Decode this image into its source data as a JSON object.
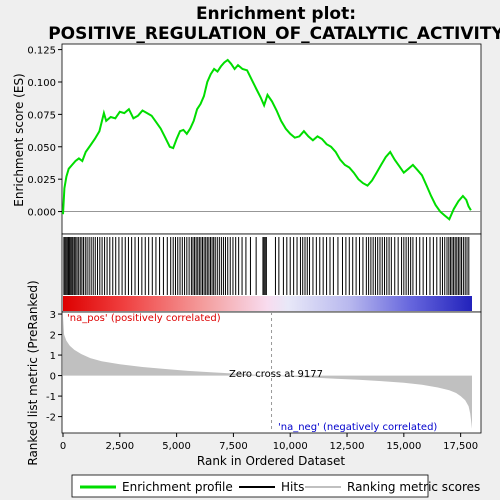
{
  "chart_data": {
    "type": "line",
    "title": "Enrichment plot: POSITIVE_REGULATION_OF_CATALYTIC_ACTIVITY",
    "title_lines": [
      "Enrichment plot:",
      "POSITIVE_REGULATION_OF_CATALYTIC_ACTIVITY"
    ],
    "xlabel": "Rank in Ordered Dataset",
    "xlim": [
      0,
      18000
    ],
    "x_ticks": [
      0,
      2500,
      5000,
      7500,
      10000,
      12500,
      15000,
      17500
    ],
    "x_tick_labels": [
      "0",
      "2,500",
      "5,000",
      "7,500",
      "10,000",
      "12,500",
      "15,000",
      "17,500"
    ],
    "es_panel": {
      "ylabel": "Enrichment score (ES)",
      "ylim": [
        -0.015,
        0.127
      ],
      "y_ticks": [
        0.0,
        0.025,
        0.05,
        0.075,
        0.1,
        0.125
      ],
      "y_tick_labels": [
        "0.000",
        "0.025",
        "0.050",
        "0.075",
        "0.100",
        "0.125"
      ],
      "series": [
        {
          "name": "Enrichment profile",
          "color": "#00dd00",
          "x": [
            0,
            60,
            150,
            250,
            400,
            550,
            700,
            850,
            1000,
            1200,
            1400,
            1600,
            1800,
            1900,
            2100,
            2300,
            2500,
            2700,
            2900,
            3100,
            3300,
            3500,
            3700,
            3900,
            4100,
            4300,
            4500,
            4700,
            4850,
            5000,
            5150,
            5300,
            5450,
            5600,
            5750,
            5900,
            6050,
            6200,
            6350,
            6500,
            6650,
            6800,
            6950,
            7100,
            7250,
            7400,
            7550,
            7700,
            7900,
            8100,
            8300,
            8500,
            8700,
            8850,
            9000,
            9200,
            9400,
            9600,
            9800,
            10000,
            10200,
            10400,
            10600,
            10800,
            11000,
            11200,
            11400,
            11600,
            11800,
            12000,
            12200,
            12400,
            12600,
            12800,
            13000,
            13200,
            13400,
            13600,
            13800,
            14000,
            14200,
            14400,
            14600,
            14800,
            15000,
            15200,
            15400,
            15600,
            15800,
            16000,
            16200,
            16400,
            16600,
            16800,
            17000,
            17200,
            17400,
            17600,
            17750,
            17850,
            17950
          ],
          "y": [
            -0.002,
            0.018,
            0.027,
            0.033,
            0.036,
            0.039,
            0.041,
            0.039,
            0.046,
            0.051,
            0.056,
            0.062,
            0.076,
            0.07,
            0.073,
            0.072,
            0.077,
            0.076,
            0.079,
            0.072,
            0.074,
            0.078,
            0.076,
            0.074,
            0.069,
            0.064,
            0.057,
            0.05,
            0.049,
            0.056,
            0.062,
            0.063,
            0.06,
            0.064,
            0.07,
            0.079,
            0.083,
            0.089,
            0.1,
            0.106,
            0.11,
            0.108,
            0.112,
            0.115,
            0.117,
            0.114,
            0.11,
            0.113,
            0.11,
            0.109,
            0.102,
            0.095,
            0.088,
            0.082,
            0.09,
            0.085,
            0.078,
            0.07,
            0.064,
            0.06,
            0.057,
            0.058,
            0.062,
            0.058,
            0.055,
            0.058,
            0.056,
            0.052,
            0.05,
            0.046,
            0.04,
            0.036,
            0.034,
            0.03,
            0.025,
            0.022,
            0.02,
            0.024,
            0.03,
            0.036,
            0.042,
            0.046,
            0.04,
            0.035,
            0.03,
            0.033,
            0.036,
            0.032,
            0.028,
            0.02,
            0.012,
            0.005,
            0.0,
            -0.003,
            -0.006,
            0.002,
            0.008,
            0.012,
            0.009,
            0.004,
            0.001
          ]
        }
      ]
    },
    "hits_panel": {
      "name": "Hits",
      "line_color": "#000000",
      "hit_ranks": [
        40,
        90,
        140,
        190,
        240,
        290,
        340,
        390,
        440,
        500,
        560,
        620,
        690,
        760,
        830,
        900,
        980,
        1060,
        1150,
        1240,
        1330,
        1420,
        1520,
        1620,
        1720,
        1830,
        1940,
        2060,
        2190,
        2320,
        2460,
        2600,
        2740,
        2880,
        3020,
        3170,
        3320,
        3470,
        3620,
        3770,
        3930,
        4090,
        4250,
        4420,
        4590,
        4740,
        4850,
        4950,
        5050,
        5150,
        5250,
        5350,
        5450,
        5550,
        5650,
        5720,
        5790,
        5860,
        5930,
        6000,
        6070,
        6140,
        6210,
        6280,
        6350,
        6420,
        6490,
        6560,
        6630,
        6700,
        6790,
        6880,
        6970,
        7060,
        7150,
        7250,
        7360,
        7480,
        7600,
        7730,
        7880,
        8050,
        8250,
        8500,
        8800,
        8850,
        8900,
        8950,
        9350,
        9500,
        9700,
        9850,
        10000,
        10150,
        10300,
        10450,
        10550,
        10650,
        10750,
        10850,
        11000,
        11150,
        11300,
        11450,
        11600,
        11750,
        11900,
        12100,
        12300,
        12450,
        12600,
        12750,
        12900,
        13050,
        13200,
        13350,
        13450,
        13550,
        13650,
        13750,
        13850,
        13950,
        14050,
        14150,
        14250,
        14350,
        14450,
        14600,
        14750,
        14900,
        15000,
        15100,
        15200,
        15300,
        15400,
        15550,
        15700,
        15850,
        16000,
        16150,
        16300,
        16450,
        16600,
        16700,
        16800,
        16900,
        16980,
        17050,
        17120,
        17190,
        17260,
        17330,
        17400,
        17470,
        17540,
        17620,
        17700,
        17780,
        17860
      ]
    },
    "ranking_panel": {
      "name": "Ranking metric scores",
      "ylabel": "Ranked list metric (PreRanked)",
      "ylim": [
        -2.8,
        3.1
      ],
      "y_ticks": [
        -2,
        -1,
        0,
        1,
        2,
        3
      ],
      "y_tick_labels": [
        "-2",
        "-1",
        "0",
        "1",
        "2",
        "3"
      ],
      "fill_color": "#c0c0c0",
      "x": [
        0,
        50,
        150,
        300,
        500,
        800,
        1200,
        1700,
        2500,
        3500,
        4500,
        5500,
        6500,
        7500,
        8500,
        9177,
        10000,
        11000,
        12000,
        13000,
        14000,
        15000,
        15800,
        16500,
        17000,
        17300,
        17500,
        17700,
        17850,
        17920,
        17960,
        18000
      ],
      "values": [
        2.9,
        2.0,
        1.7,
        1.45,
        1.25,
        1.05,
        0.85,
        0.7,
        0.55,
        0.42,
        0.32,
        0.23,
        0.16,
        0.1,
        0.04,
        0.0,
        -0.05,
        -0.1,
        -0.15,
        -0.2,
        -0.27,
        -0.35,
        -0.45,
        -0.58,
        -0.72,
        -0.85,
        -1.0,
        -1.2,
        -1.5,
        -1.85,
        -2.2,
        -2.6
      ],
      "pos_label": "'na_pos' (positively correlated)",
      "neg_label": "'na_neg' (negatively correlated)",
      "zero_cross_label": "Zero cross at 9177",
      "zero_cross_rank": 9177
    },
    "legend": {
      "placement": "bottom",
      "entries": [
        {
          "label": "Enrichment profile",
          "color": "#00dd00",
          "style": "line"
        },
        {
          "label": "Hits",
          "color": "#000000",
          "style": "line"
        },
        {
          "label": "Ranking metric scores",
          "color": "#c0c0c0",
          "style": "line"
        }
      ]
    },
    "colors": {
      "pos_label": "#dd0000",
      "neg_label": "#0000cc",
      "heat_positive": "#ee0000",
      "heat_negative": "#2222cc"
    }
  }
}
